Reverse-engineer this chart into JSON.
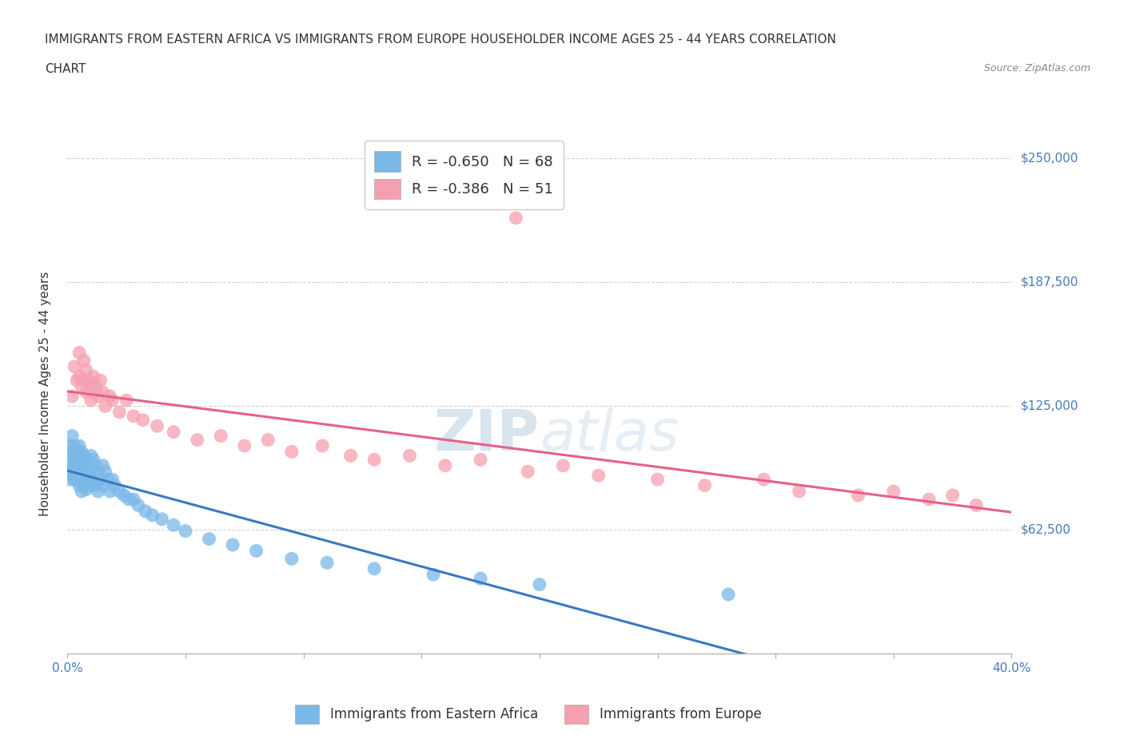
{
  "title_line1": "IMMIGRANTS FROM EASTERN AFRICA VS IMMIGRANTS FROM EUROPE HOUSEHOLDER INCOME AGES 25 - 44 YEARS CORRELATION",
  "title_line2": "CHART",
  "source": "Source: ZipAtlas.com",
  "ylabel": "Householder Income Ages 25 - 44 years",
  "xlim": [
    0.0,
    0.4
  ],
  "ylim": [
    0,
    262500
  ],
  "xticks": [
    0.0,
    0.05,
    0.1,
    0.15,
    0.2,
    0.25,
    0.3,
    0.35,
    0.4
  ],
  "yticks": [
    0,
    62500,
    125000,
    187500,
    250000
  ],
  "yticklabels_right": [
    "",
    "$62,500",
    "$125,000",
    "$187,500",
    "$250,000"
  ],
  "legend1_label": "R = -0.650   N = 68",
  "legend2_label": "R = -0.386   N = 51",
  "series1_color": "#7ab8e8",
  "series2_color": "#f5a0b0",
  "line1_color": "#3a7abf",
  "line2_color": "#e8608a",
  "watermark_color": "#ccd8e8",
  "background_color": "#ffffff",
  "grid_color": "#cccccc",
  "series1_x": [
    0.001,
    0.001,
    0.001,
    0.001,
    0.002,
    0.002,
    0.002,
    0.002,
    0.003,
    0.003,
    0.003,
    0.003,
    0.004,
    0.004,
    0.004,
    0.005,
    0.005,
    0.005,
    0.005,
    0.006,
    0.006,
    0.006,
    0.006,
    0.007,
    0.007,
    0.007,
    0.008,
    0.008,
    0.008,
    0.009,
    0.009,
    0.01,
    0.01,
    0.01,
    0.011,
    0.011,
    0.012,
    0.012,
    0.013,
    0.013,
    0.014,
    0.015,
    0.015,
    0.016,
    0.017,
    0.018,
    0.019,
    0.02,
    0.022,
    0.024,
    0.026,
    0.028,
    0.03,
    0.033,
    0.036,
    0.04,
    0.045,
    0.05,
    0.06,
    0.07,
    0.08,
    0.095,
    0.11,
    0.13,
    0.155,
    0.175,
    0.2,
    0.28
  ],
  "series1_y": [
    105000,
    98000,
    92000,
    88000,
    110000,
    102000,
    95000,
    90000,
    105000,
    98000,
    92000,
    88000,
    102000,
    95000,
    88000,
    105000,
    98000,
    92000,
    85000,
    102000,
    95000,
    88000,
    82000,
    100000,
    92000,
    85000,
    98000,
    90000,
    83000,
    95000,
    88000,
    100000,
    92000,
    85000,
    98000,
    88000,
    95000,
    85000,
    92000,
    82000,
    88000,
    95000,
    85000,
    92000,
    88000,
    82000,
    88000,
    85000,
    82000,
    80000,
    78000,
    78000,
    75000,
    72000,
    70000,
    68000,
    65000,
    62000,
    58000,
    55000,
    52000,
    48000,
    46000,
    43000,
    40000,
    38000,
    35000,
    30000
  ],
  "series2_x": [
    0.002,
    0.003,
    0.004,
    0.005,
    0.005,
    0.006,
    0.007,
    0.007,
    0.008,
    0.008,
    0.009,
    0.01,
    0.01,
    0.011,
    0.012,
    0.013,
    0.014,
    0.015,
    0.016,
    0.018,
    0.019,
    0.022,
    0.025,
    0.028,
    0.032,
    0.038,
    0.045,
    0.055,
    0.065,
    0.075,
    0.085,
    0.095,
    0.108,
    0.12,
    0.13,
    0.145,
    0.16,
    0.175,
    0.195,
    0.21,
    0.225,
    0.25,
    0.27,
    0.295,
    0.31,
    0.335,
    0.35,
    0.365,
    0.375,
    0.385,
    0.19
  ],
  "series2_y": [
    130000,
    145000,
    138000,
    152000,
    140000,
    135000,
    148000,
    138000,
    143000,
    132000,
    138000,
    135000,
    128000,
    140000,
    135000,
    130000,
    138000,
    132000,
    125000,
    130000,
    128000,
    122000,
    128000,
    120000,
    118000,
    115000,
    112000,
    108000,
    110000,
    105000,
    108000,
    102000,
    105000,
    100000,
    98000,
    100000,
    95000,
    98000,
    92000,
    95000,
    90000,
    88000,
    85000,
    88000,
    82000,
    80000,
    82000,
    78000,
    80000,
    75000,
    220000
  ]
}
